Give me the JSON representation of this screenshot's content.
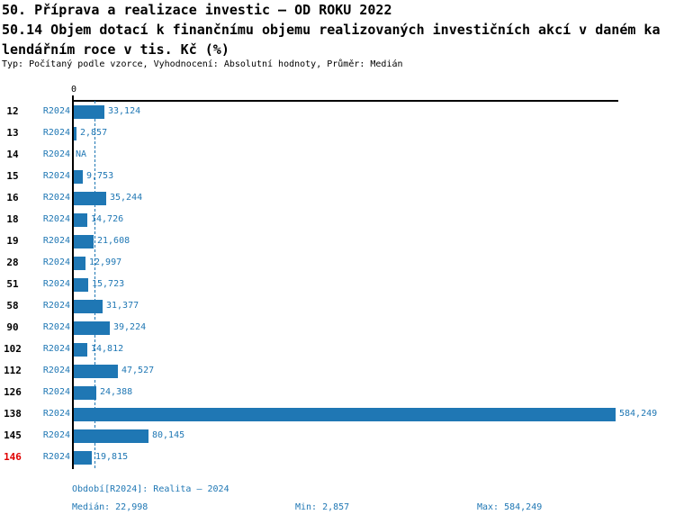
{
  "title": {
    "line1": "50. Příprava a realizace investic – OD ROKU 2022",
    "line2": "50.14 Objem dotací k finančnímu objemu realizovaných investičních akcí v daném ka",
    "line3": "lendářním roce v tis. Kč (%)",
    "meta": "Typ: Počítaný podle vzorce, Vyhodnocení: Absolutní hodnoty, Průměr: Medián"
  },
  "axis": {
    "zero_label": "0"
  },
  "chart_data": {
    "type": "bar",
    "orientation": "horizontal",
    "title": "50.14 Objem dotací k finančnímu objemu realizovaných investičních akcí v daném kalendářním roce v tis. Kč (%)",
    "series_label": "R2024",
    "categories": [
      "12",
      "13",
      "14",
      "15",
      "16",
      "18",
      "19",
      "28",
      "51",
      "58",
      "90",
      "102",
      "112",
      "126",
      "138",
      "145",
      "146"
    ],
    "rows": [
      {
        "id": "12",
        "period": "R2024",
        "value": 33124,
        "label": "33,124",
        "highlight": false
      },
      {
        "id": "13",
        "period": "R2024",
        "value": 2857,
        "label": "2,857",
        "highlight": false
      },
      {
        "id": "14",
        "period": "R2024",
        "value": null,
        "label": "NA",
        "highlight": false
      },
      {
        "id": "15",
        "period": "R2024",
        "value": 9753,
        "label": "9,753",
        "highlight": false
      },
      {
        "id": "16",
        "period": "R2024",
        "value": 35244,
        "label": "35,244",
        "highlight": false
      },
      {
        "id": "18",
        "period": "R2024",
        "value": 14726,
        "label": "14,726",
        "highlight": false
      },
      {
        "id": "19",
        "period": "R2024",
        "value": 21608,
        "label": "21,608",
        "highlight": false
      },
      {
        "id": "28",
        "period": "R2024",
        "value": 12997,
        "label": "12,997",
        "highlight": false
      },
      {
        "id": "51",
        "period": "R2024",
        "value": 15723,
        "label": "15,723",
        "highlight": false
      },
      {
        "id": "58",
        "period": "R2024",
        "value": 31377,
        "label": "31,377",
        "highlight": false
      },
      {
        "id": "90",
        "period": "R2024",
        "value": 39224,
        "label": "39,224",
        "highlight": false
      },
      {
        "id": "102",
        "period": "R2024",
        "value": 14812,
        "label": "14,812",
        "highlight": false
      },
      {
        "id": "112",
        "period": "R2024",
        "value": 47527,
        "label": "47,527",
        "highlight": false
      },
      {
        "id": "126",
        "period": "R2024",
        "value": 24388,
        "label": "24,388",
        "highlight": false
      },
      {
        "id": "138",
        "period": "R2024",
        "value": 584249,
        "label": "584,249",
        "highlight": false
      },
      {
        "id": "145",
        "period": "R2024",
        "value": 80145,
        "label": "80,145",
        "highlight": false
      },
      {
        "id": "146",
        "period": "R2024",
        "value": 19815,
        "label": "19,815",
        "highlight": true
      }
    ],
    "median_value": 22998,
    "min_value": 2857,
    "max_value": 584249,
    "xlim": [
      0,
      584249
    ],
    "bar_color": "#1f77b4",
    "text_color": "#1f77b4",
    "highlight_color": "#e00000",
    "grid": false,
    "legend_position": "none"
  },
  "footer": {
    "period_info": "Období[R2024]: Realita – 2024",
    "median": "Medián: 22,998",
    "min": "Min: 2,857",
    "max": "Max: 584,249"
  }
}
